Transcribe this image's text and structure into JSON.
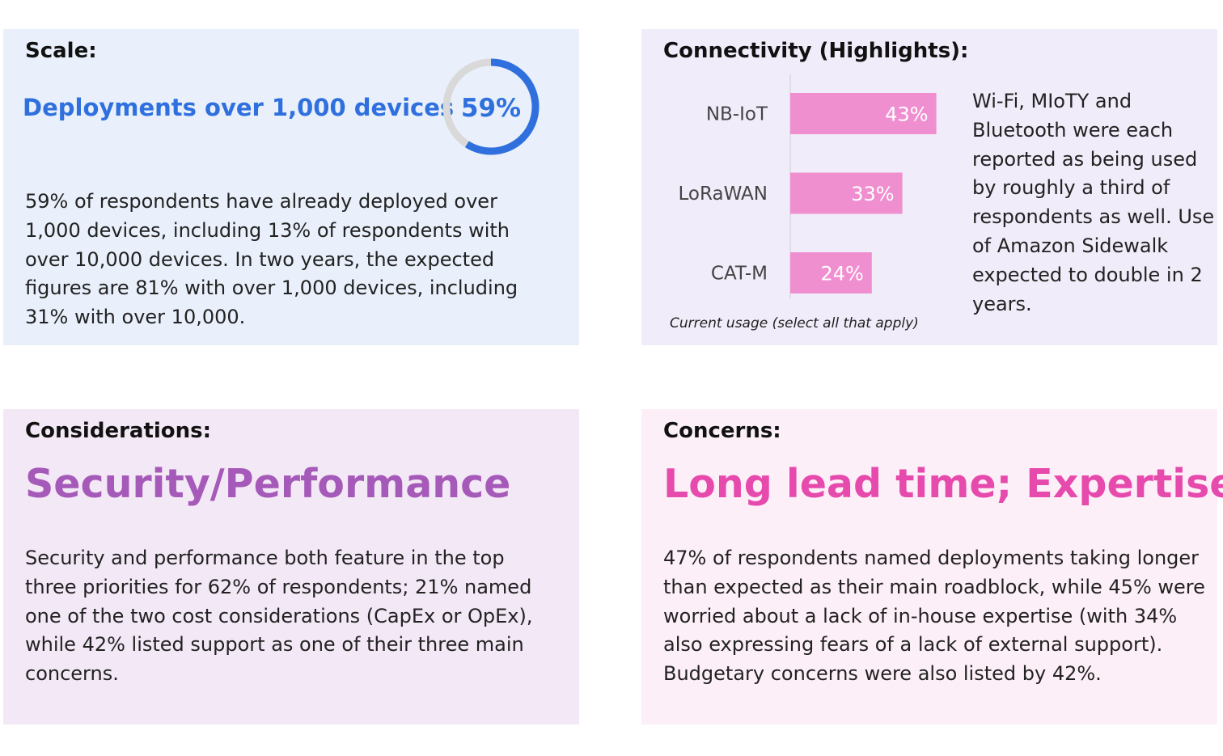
{
  "scale": {
    "heading": "Scale:",
    "headline": "Deployments over 1,000 devices",
    "donut_value": 59,
    "donut_label": "59%",
    "body": "59% of respondents have already deployed over 1,000 devices, including 13% of respondents with over 10,000 devices. In two years, the expected figures are 81% with over 1,000 devices, including 31% with over 10,000.",
    "colors": {
      "accent": "#2f70de",
      "track": "#d9d9d9",
      "bg": "#e9f0fb"
    }
  },
  "connectivity": {
    "heading": "Connectivity (Highlights):",
    "side_text": "Wi-Fi, MIoTY and Bluetooth were each reported as being used by roughly a third of respondents as well. Use of Amazon Sidewalk expected to double in 2 years.",
    "colors": {
      "bar": "#f08fd0",
      "bg": "#f1ecf9"
    }
  },
  "chart_data": {
    "type": "bar",
    "orientation": "horizontal",
    "categories": [
      "NB-IoT",
      "LoRaWAN",
      "CAT-M"
    ],
    "values": [
      43,
      33,
      24
    ],
    "value_labels": [
      "43%",
      "33%",
      "24%"
    ],
    "title": "",
    "xlabel": "Current usage (select all that apply)",
    "ylabel": "",
    "xlim": [
      0,
      100
    ]
  },
  "considerations": {
    "heading": "Considerations:",
    "title": "Security/Performance",
    "body": "Security and performance both feature in the top three priorities for 62% of respondents; 21% named one of the two cost considerations (CapEx or OpEx), while 42% listed support as one of their three main concerns.",
    "colors": {
      "title": "#a559b8",
      "bg": "#f3e8f6"
    }
  },
  "concerns": {
    "heading": "Concerns:",
    "title": "Long lead time; Expertise",
    "body": "47% of respondents named deployments taking longer than expected as their main roadblock, while 45% were worried about a lack of in-house expertise (with 34% also expressing fears of a lack of external support). Budgetary concerns were also listed by 42%.",
    "colors": {
      "title": "#e64aac",
      "bg": "#fdeff7"
    }
  }
}
